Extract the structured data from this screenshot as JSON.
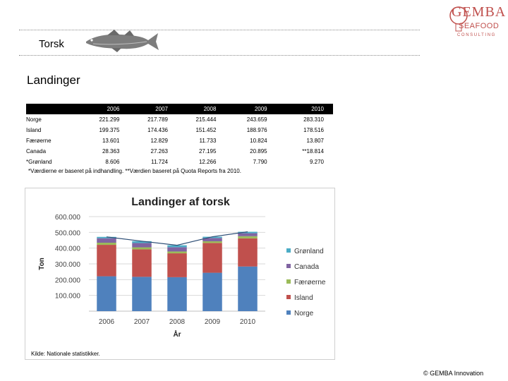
{
  "slide_title": "Torsk",
  "logo": {
    "line1": "GEMBA",
    "line2": "SEAFOOD",
    "line3": "CONSULTING"
  },
  "section_title": "Landinger",
  "table": {
    "headers": [
      "",
      "2006",
      "2007",
      "2008",
      "2009",
      "2010"
    ],
    "rows": [
      [
        "Norge",
        "221.299",
        "217.789",
        "215.444",
        "243.659",
        "283.310"
      ],
      [
        "Island",
        "199.375",
        "174.436",
        "151.452",
        "188.976",
        "178.516"
      ],
      [
        "Færøerne",
        "13.601",
        "12.829",
        "11.733",
        "10.824",
        "13.807"
      ],
      [
        "Canada",
        "28.363",
        "27.263",
        "27.195",
        "20.895",
        "**18.814"
      ],
      [
        "*Grønland",
        "8.606",
        "11.724",
        "12.266",
        "7.790",
        "9.270"
      ]
    ]
  },
  "footnote": "*Værdierne er baseret på indhandling. **Værdien baseret på Quota Reports fra 2010.",
  "source": "Kilde: Nationale statistikker.",
  "copyright": "© GEMBA Innovation",
  "chart_data": {
    "type": "bar",
    "stacked": true,
    "title": "Landinger af torsk",
    "xlabel": "År",
    "ylabel": "Ton",
    "categories": [
      "2006",
      "2007",
      "2008",
      "2009",
      "2010"
    ],
    "ylim": [
      0,
      600000
    ],
    "yticks": [
      100000,
      200000,
      300000,
      400000,
      500000,
      600000
    ],
    "ytick_labels": [
      "100.000",
      "200.000",
      "300.000",
      "400.000",
      "500.000",
      "600.000"
    ],
    "grid": true,
    "legend_position": "right",
    "series": [
      {
        "name": "Norge",
        "color": "#4f81bd",
        "values": [
          221299,
          217789,
          215444,
          243659,
          283310
        ]
      },
      {
        "name": "Island",
        "color": "#c0504d",
        "values": [
          199375,
          174436,
          151452,
          188976,
          178516
        ]
      },
      {
        "name": "Færøerne",
        "color": "#9bbb59",
        "values": [
          13601,
          12829,
          11733,
          10824,
          13807
        ]
      },
      {
        "name": "Canada",
        "color": "#8064a2",
        "values": [
          28363,
          27263,
          27195,
          20895,
          18814
        ]
      },
      {
        "name": "Grønland",
        "color": "#4bacc6",
        "values": [
          8606,
          11724,
          12266,
          7790,
          9270
        ]
      }
    ],
    "total_line_color": "#2c4d75"
  }
}
